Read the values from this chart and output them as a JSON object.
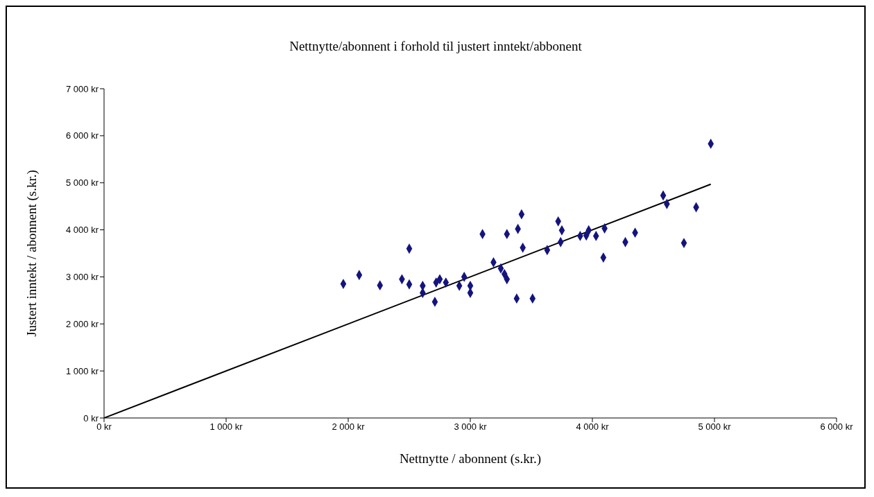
{
  "chart_data": {
    "type": "scatter",
    "title": "Nettnytte/abonnent i forhold til justert inntekt/abbonent",
    "xlabel": "Nettnytte / abonnent (s.kr.)",
    "ylabel": "Justert inntekt / abonnent (s.kr.)",
    "x": [
      1960,
      2090,
      2260,
      2440,
      2500,
      2500,
      2610,
      2610,
      2710,
      2720,
      2750,
      2800,
      2950,
      2910,
      3000,
      3000,
      3100,
      3190,
      3250,
      3280,
      3300,
      3300,
      3390,
      3380,
      3420,
      3430,
      3510,
      3630,
      3720,
      3750,
      3740,
      3900,
      3950,
      3970,
      4030,
      4100,
      4090,
      4270,
      4350,
      4580,
      4610,
      4750,
      4850,
      4970
    ],
    "series": [
      {
        "color": "#14147f",
        "values": [
          2850,
          3040,
          2820,
          2950,
          2840,
          3600,
          2810,
          2660,
          2470,
          2880,
          2950,
          2880,
          3000,
          2810,
          2810,
          2660,
          3910,
          3310,
          3180,
          3060,
          2950,
          3910,
          4020,
          2540,
          4330,
          3620,
          2540,
          3570,
          4180,
          3990,
          3740,
          3870,
          3880,
          3990,
          3870,
          4030,
          3410,
          3740,
          3940,
          4730,
          4550,
          3720,
          4480,
          5830
        ]
      },
      {
        "type": "line",
        "color": "#000000",
        "x": [
          0,
          4970
        ],
        "values": [
          0,
          4970
        ],
        "marker": "none"
      }
    ],
    "xlim": [
      0,
      6000
    ],
    "ylim": [
      0,
      7000
    ],
    "xticks": [
      {
        "value": 0,
        "label": "0 kr"
      },
      {
        "value": 1000,
        "label": "1 000 kr"
      },
      {
        "value": 2000,
        "label": "2 000 kr"
      },
      {
        "value": 3000,
        "label": "3 000 kr"
      },
      {
        "value": 4000,
        "label": "4 000 kr"
      },
      {
        "value": 5000,
        "label": "5 000 kr"
      },
      {
        "value": 6000,
        "label": "6 000 kr"
      }
    ],
    "yticks": [
      {
        "value": 0,
        "label": "0 kr"
      },
      {
        "value": 1000,
        "label": "1 000 kr"
      },
      {
        "value": 2000,
        "label": "2 000 kr"
      },
      {
        "value": 3000,
        "label": "3 000 kr"
      },
      {
        "value": 4000,
        "label": "4 000 kr"
      },
      {
        "value": 5000,
        "label": "5 000 kr"
      },
      {
        "value": 6000,
        "label": "6 000 kr"
      },
      {
        "value": 7000,
        "label": "7 000 kr"
      }
    ],
    "marker": "diamond",
    "grid": false
  }
}
